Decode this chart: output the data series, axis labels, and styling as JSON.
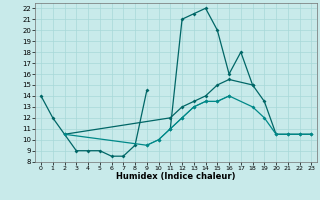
{
  "xlabel": "Humidex (Indice chaleur)",
  "bg_color": "#c8eaea",
  "grid_color": "#a8d8d8",
  "line_color1": "#006666",
  "line_color2": "#008888",
  "xlim": [
    -0.5,
    23.5
  ],
  "ylim": [
    8,
    22.5
  ],
  "xticks": [
    0,
    1,
    2,
    3,
    4,
    5,
    6,
    7,
    8,
    9,
    10,
    11,
    12,
    13,
    14,
    15,
    16,
    17,
    18,
    19,
    20,
    21,
    22,
    23
  ],
  "yticks": [
    8,
    9,
    10,
    11,
    12,
    13,
    14,
    15,
    16,
    17,
    18,
    19,
    20,
    21,
    22
  ],
  "s1_x": [
    0,
    1,
    3,
    4,
    5,
    6,
    7,
    8,
    9
  ],
  "s1_y": [
    14,
    12,
    9,
    9,
    9,
    8.5,
    8.5,
    9.5,
    14.5
  ],
  "s1b_x": [
    11,
    12,
    13,
    14,
    15,
    16,
    17,
    18
  ],
  "s1b_y": [
    11,
    21,
    21.5,
    22,
    20,
    16,
    18,
    15
  ],
  "s2_x": [
    2,
    11,
    12,
    13,
    14,
    15,
    16,
    18,
    19,
    20,
    21,
    22,
    23
  ],
  "s2_y": [
    10.5,
    12,
    13,
    13.5,
    14,
    15,
    15.5,
    15,
    13.5,
    10.5,
    10.5,
    10.5,
    10.5
  ],
  "s3_x": [
    2,
    9,
    10,
    11,
    12,
    13,
    14,
    15,
    16,
    18,
    19,
    20,
    21,
    22,
    23
  ],
  "s3_y": [
    10.5,
    9.5,
    10,
    11,
    12,
    13,
    13.5,
    13.5,
    14,
    13,
    12,
    10.5,
    10.5,
    10.5,
    10.5
  ],
  "s4_x": [
    9,
    10,
    11,
    12,
    13,
    14,
    15,
    16
  ],
  "s4_y": [
    9.5,
    10,
    11,
    12,
    13,
    13.5,
    13.5,
    14
  ]
}
